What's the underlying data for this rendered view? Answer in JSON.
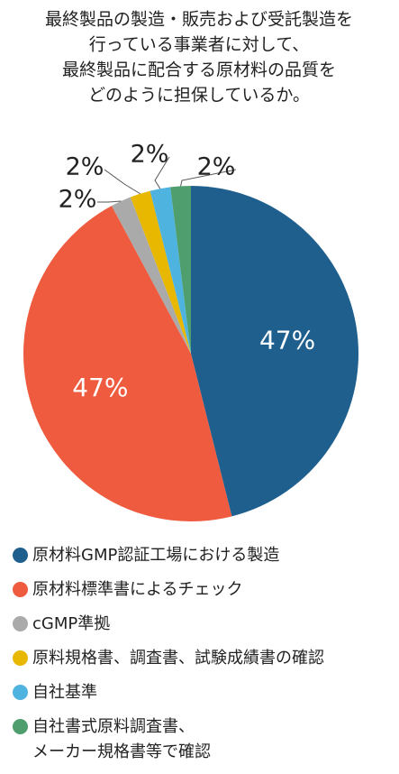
{
  "chart_data": {
    "type": "pie",
    "title": [
      "最終製品の製造・販売および受託製造を",
      "行っている事業者に対して、",
      "最終製品に配合する原材料の品質を",
      "どのように担保しているか。"
    ],
    "categories": [
      "原材料GMP認証工場における製造",
      "原材料標準書によるチェック",
      "cGMP準拠",
      "原料規格書、調査書、試験成績書の確認",
      "自社基準",
      "自社書式原料調査書、\nメーカー規格書等で確認"
    ],
    "values": [
      47,
      47,
      2,
      2,
      2,
      2
    ],
    "value_labels": [
      "47%",
      "47%",
      "2%",
      "2%",
      "2%",
      "2%"
    ],
    "colors": [
      "#1f5f8e",
      "#ef5b3f",
      "#aaaaaa",
      "#e8b800",
      "#4fb3e0",
      "#4f9e6e"
    ]
  }
}
